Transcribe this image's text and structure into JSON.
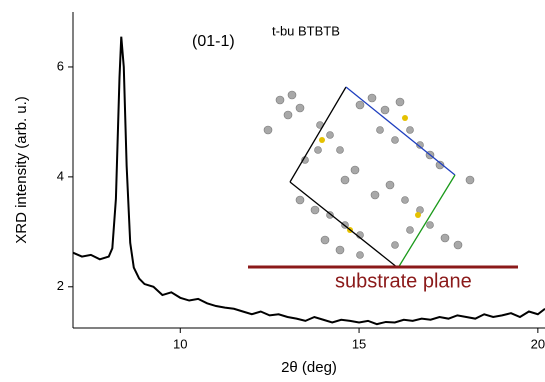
{
  "chart_data": {
    "type": "line",
    "xlabel": "2θ (deg)",
    "ylabel": "XRD intensity (arb. u.)",
    "annotations": [
      "(01-1)",
      "t-bu BTBTB",
      "substrate plane"
    ],
    "x": [
      7.0,
      7.25,
      7.5,
      7.75,
      8.0,
      8.1,
      8.2,
      8.3,
      8.35,
      8.42,
      8.5,
      8.6,
      8.7,
      8.85,
      9.0,
      9.25,
      9.5,
      9.75,
      10.0,
      10.25,
      10.5,
      10.75,
      11.0,
      11.25,
      11.5,
      11.75,
      12.0,
      12.25,
      12.5,
      12.75,
      13.0,
      13.25,
      13.5,
      13.75,
      14.0,
      14.25,
      14.5,
      14.75,
      15.0,
      15.25,
      15.5,
      15.75,
      16.0,
      16.25,
      16.5,
      16.75,
      17.0,
      17.25,
      17.5,
      17.75,
      18.0,
      18.25,
      18.5,
      18.75,
      19.0,
      19.25,
      19.5,
      19.75,
      20.0,
      20.2
    ],
    "values": [
      2.62,
      2.55,
      2.58,
      2.5,
      2.55,
      2.7,
      3.6,
      5.8,
      6.55,
      6.0,
      4.2,
      2.8,
      2.35,
      2.15,
      2.05,
      2.0,
      1.85,
      1.9,
      1.8,
      1.75,
      1.78,
      1.7,
      1.65,
      1.62,
      1.6,
      1.55,
      1.5,
      1.55,
      1.48,
      1.5,
      1.45,
      1.42,
      1.38,
      1.45,
      1.4,
      1.35,
      1.4,
      1.38,
      1.35,
      1.38,
      1.32,
      1.36,
      1.35,
      1.4,
      1.38,
      1.42,
      1.4,
      1.45,
      1.42,
      1.48,
      1.45,
      1.42,
      1.5,
      1.45,
      1.48,
      1.52,
      1.45,
      1.55,
      1.5,
      1.6
    ],
    "color": "#000000",
    "xlim": [
      7,
      20.2
    ],
    "xticks": [
      10,
      15,
      20
    ],
    "ylim": [
      1.25,
      7.0
    ],
    "yticks": [
      2,
      4,
      6
    ]
  }
}
